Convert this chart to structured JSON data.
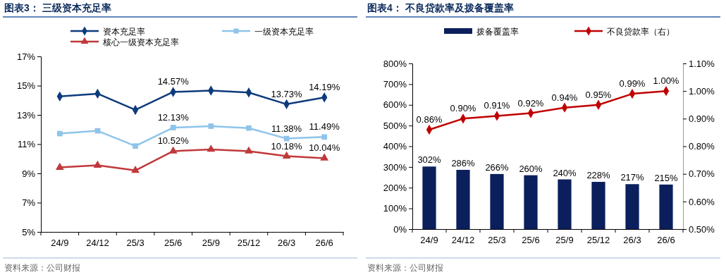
{
  "chart_data": [
    {
      "type": "line",
      "title": "图表3：  三级资本充足率",
      "categories": [
        "24/9",
        "24/12",
        "25/3",
        "25/6",
        "25/9",
        "25/12",
        "26/3",
        "26/6"
      ],
      "series": [
        {
          "name": "资本充足率",
          "color": "#0d3b7c",
          "marker": "diamond",
          "values": [
            14.26,
            14.45,
            13.34,
            14.57,
            14.66,
            14.53,
            13.73,
            14.19
          ],
          "value_labels": [
            null,
            null,
            null,
            "14.57%",
            null,
            null,
            "13.73%",
            "14.19%"
          ]
        },
        {
          "name": "一级资本充足率",
          "color": "#8fc4ea",
          "marker": "square",
          "values": [
            11.72,
            11.91,
            10.87,
            12.13,
            12.23,
            12.1,
            11.38,
            11.49
          ],
          "value_labels": [
            null,
            null,
            null,
            "12.13%",
            null,
            null,
            "11.38%",
            "11.49%"
          ]
        },
        {
          "name": "核心一级资本充足率",
          "color": "#c0393b",
          "marker": "triangle",
          "values": [
            9.41,
            9.55,
            9.2,
            10.52,
            10.64,
            10.52,
            10.18,
            10.04
          ],
          "value_labels": [
            null,
            null,
            null,
            "10.52%",
            null,
            null,
            "10.18%",
            "10.04%"
          ]
        }
      ],
      "ylim": [
        5,
        17
      ],
      "yticks": [
        {
          "value": 5,
          "label": "5%"
        },
        {
          "value": 7,
          "label": "7%"
        },
        {
          "value": 9,
          "label": "9%"
        },
        {
          "value": 11,
          "label": "11%"
        },
        {
          "value": 13,
          "label": "13%"
        },
        {
          "value": 15,
          "label": "15%"
        },
        {
          "value": 17,
          "label": "17%"
        }
      ],
      "legend": "top",
      "grid": false,
      "annotations": [
        "资料来源：公司财报"
      ]
    },
    {
      "type": "bar",
      "title": "图表4：  不良贷款率及拨备覆盖率",
      "categories": [
        "24/9",
        "24/12",
        "25/3",
        "25/6",
        "25/9",
        "25/12",
        "26/3",
        "26/6"
      ],
      "series": [
        {
          "name": "拨备覆盖率",
          "color": "#0b1f5c",
          "values": [
            302,
            286,
            266,
            260,
            240,
            228,
            217,
            215
          ],
          "value_labels": [
            "302%",
            "286%",
            "266%",
            "260%",
            "240%",
            "228%",
            "217%",
            "215%"
          ]
        },
        {
          "name": "不良贷款率（右）",
          "type": "line",
          "axis": "y2",
          "color": "#c00000",
          "marker": "diamond",
          "values": [
            0.86,
            0.9,
            0.91,
            0.92,
            0.94,
            0.95,
            0.99,
            1.0
          ],
          "value_labels": [
            "0.86%",
            "0.90%",
            "0.91%",
            "0.92%",
            "0.94%",
            "0.95%",
            "0.99%",
            "1.00%"
          ]
        }
      ],
      "ylim": [
        0,
        800
      ],
      "yticks": [
        {
          "value": 0,
          "label": "0%"
        },
        {
          "value": 100,
          "label": "100%"
        },
        {
          "value": 200,
          "label": "200%"
        },
        {
          "value": 300,
          "label": "300%"
        },
        {
          "value": 400,
          "label": "400%"
        },
        {
          "value": 500,
          "label": "500%"
        },
        {
          "value": 600,
          "label": "600%"
        },
        {
          "value": 700,
          "label": "700%"
        },
        {
          "value": 800,
          "label": "800%"
        }
      ],
      "y2lim": [
        0.5,
        1.1
      ],
      "y2ticks": [
        {
          "value": 0.5,
          "label": "0.50%"
        },
        {
          "value": 0.6,
          "label": "0.60%"
        },
        {
          "value": 0.7,
          "label": "0.70%"
        },
        {
          "value": 0.8,
          "label": "0.80%"
        },
        {
          "value": 0.9,
          "label": "0.90%"
        },
        {
          "value": 1.0,
          "label": "1.00%"
        },
        {
          "value": 1.1,
          "label": "1.10%"
        }
      ],
      "legend": "top",
      "grid": false,
      "annotations": [
        "资料来源：公司财报"
      ]
    }
  ]
}
